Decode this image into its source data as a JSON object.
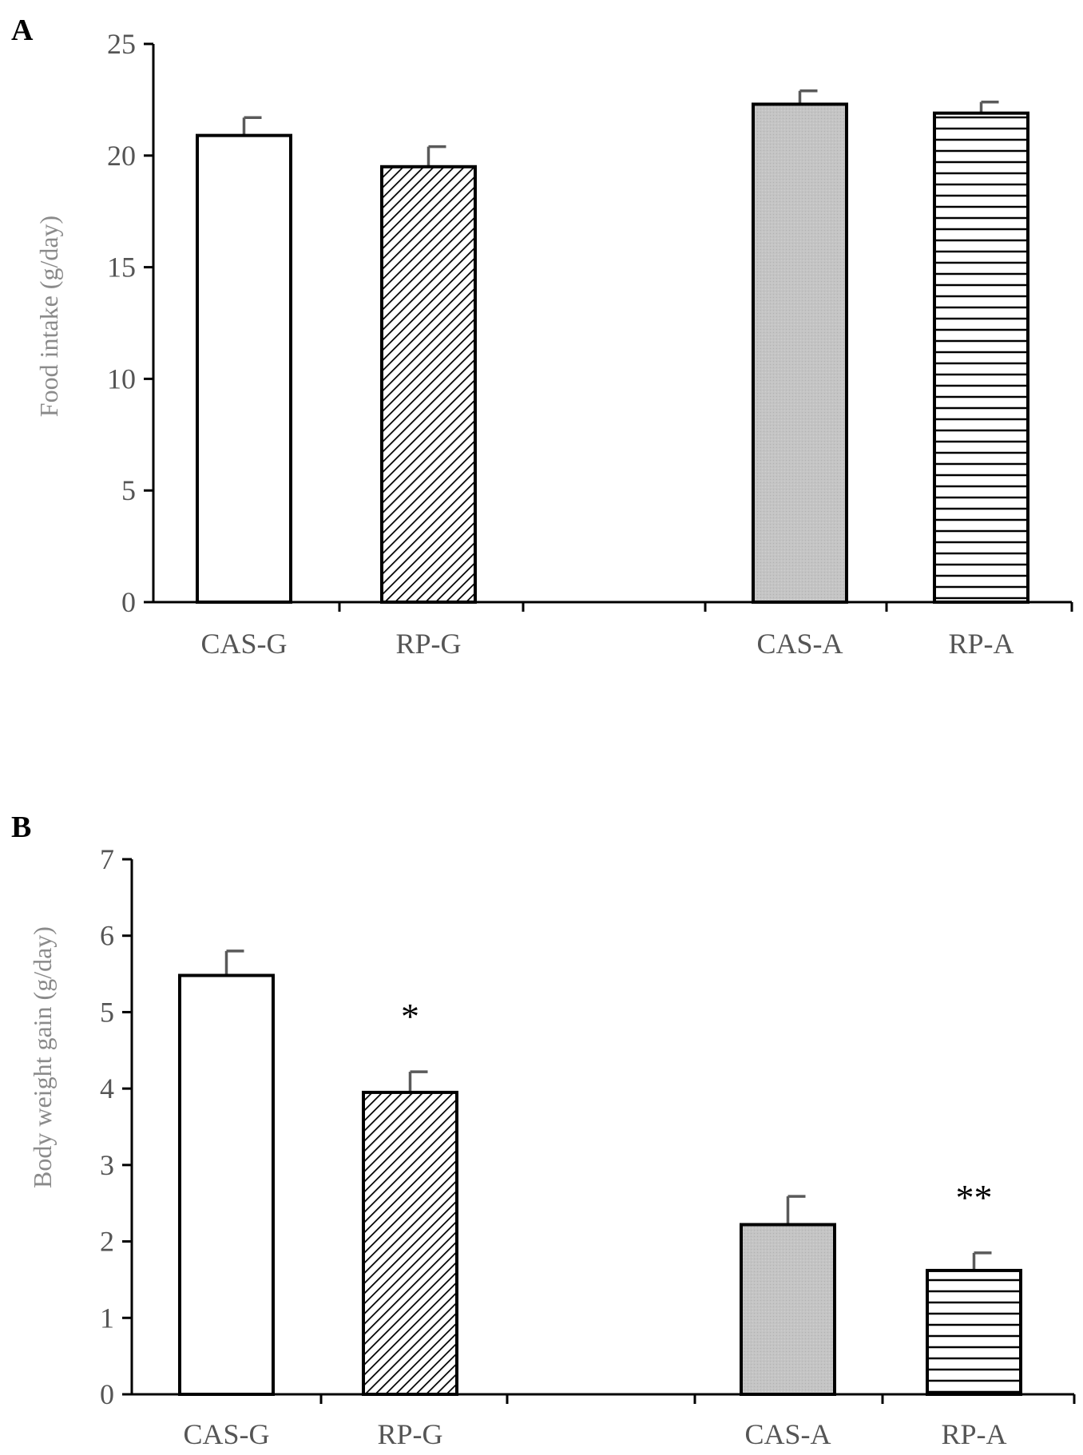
{
  "chart_data": [
    {
      "type": "bar",
      "panel": "A",
      "title": "",
      "xlabel": "",
      "ylabel": "Food intake (g/day)",
      "ylim": [
        0,
        25
      ],
      "yticks": [
        0,
        5,
        10,
        15,
        20,
        25
      ],
      "categories": [
        "CAS-G",
        "RP-G",
        "CAS-A",
        "RP-A"
      ],
      "values": [
        20.9,
        19.5,
        22.3,
        21.9
      ],
      "errors": [
        0.8,
        0.9,
        0.6,
        0.5
      ],
      "annotations": [
        "",
        "",
        "",
        ""
      ],
      "patterns": [
        "white",
        "diagonal",
        "gray",
        "horizontal"
      ]
    },
    {
      "type": "bar",
      "panel": "B",
      "title": "",
      "xlabel": "",
      "ylabel": "Body weight gain (g/day)",
      "ylim": [
        0,
        7
      ],
      "yticks": [
        0,
        1,
        2,
        3,
        4,
        5,
        6,
        7
      ],
      "categories": [
        "CAS-G",
        "RP-G",
        "CAS-A",
        "RP-A"
      ],
      "values": [
        5.48,
        3.95,
        2.22,
        1.62
      ],
      "errors": [
        0.32,
        0.27,
        0.37,
        0.23
      ],
      "annotations": [
        "",
        "*",
        "",
        "**"
      ],
      "patterns": [
        "white",
        "diagonal",
        "gray",
        "horizontal"
      ]
    }
  ]
}
